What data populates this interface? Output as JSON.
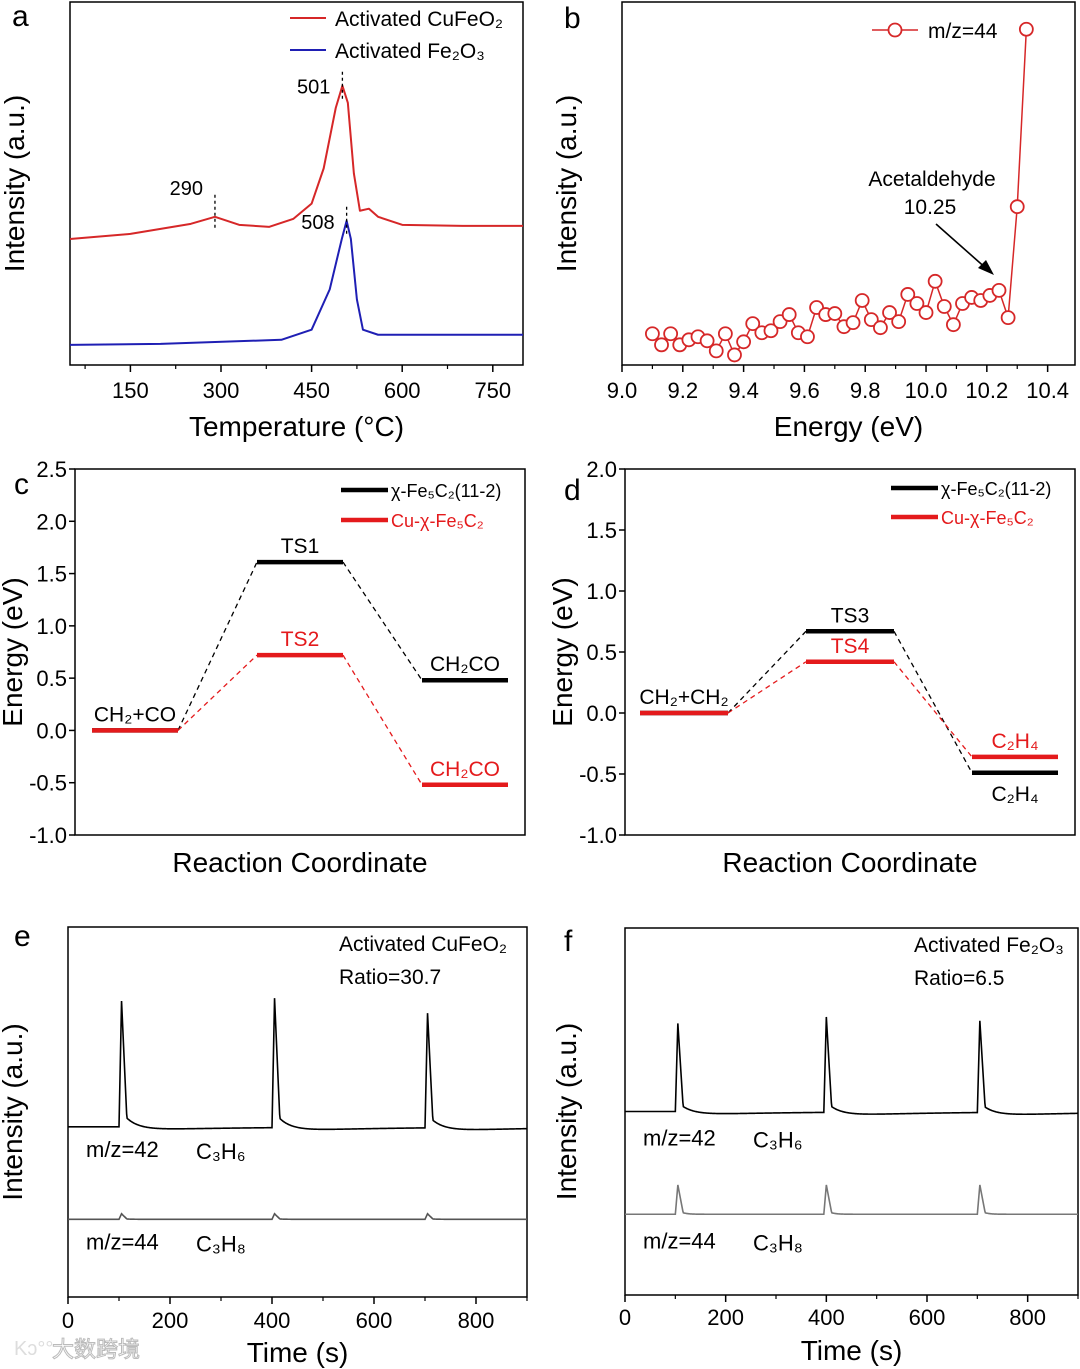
{
  "watermark": "大数跨境",
  "chart_data": [
    {
      "panel": "a",
      "type": "line",
      "xlabel": "Temperature (°C)",
      "ylabel": "Intensity (a.u.)",
      "xlim": [
        50,
        800
      ],
      "ylim": [
        0,
        360
      ],
      "xticks": [
        "150",
        "300",
        "450",
        "600",
        "750"
      ],
      "yticks": [],
      "legend": {
        "placement": "top-right"
      },
      "series": [
        {
          "name": "Activated CuFeO₂",
          "color": "#d62728",
          "x": [
            50,
            150,
            200,
            250,
            290,
            330,
            380,
            420,
            450,
            470,
            490,
            501,
            510,
            520,
            530,
            545,
            560,
            600,
            700,
            800
          ],
          "y": [
            125,
            130,
            135,
            140,
            147,
            139,
            137,
            145,
            160,
            195,
            255,
            277,
            260,
            190,
            153,
            155,
            147,
            139,
            138,
            138
          ]
        },
        {
          "name": "Activated Fe₂O₃",
          "color": "#1f1fb4",
          "x": [
            50,
            200,
            400,
            450,
            480,
            500,
            508,
            515,
            525,
            535,
            560,
            800
          ],
          "y": [
            20,
            21,
            25,
            35,
            75,
            125,
            143,
            125,
            65,
            35,
            30,
            30
          ]
        }
      ],
      "annotations": [
        {
          "text": "501",
          "x": 501,
          "y": 277
        },
        {
          "text": "290",
          "x": 290,
          "y": 147
        },
        {
          "text": "508",
          "x": 508,
          "y": 143
        }
      ]
    },
    {
      "panel": "b",
      "type": "scatter",
      "xlabel": "Energy (eV)",
      "ylabel": "Intensity (a.u.)",
      "xlim": [
        9.0,
        10.49
      ],
      "ylim": [
        0,
        360
      ],
      "xticks": [
        "9.0",
        "9.2",
        "9.4",
        "9.6",
        "9.8",
        "10.0",
        "10.2",
        "10.4"
      ],
      "yticks": [],
      "legend": {
        "placement": "top-right"
      },
      "series": [
        {
          "name": "m/z=44",
          "color": "#d62728",
          "x": [
            9.1,
            9.13,
            9.16,
            9.19,
            9.22,
            9.25,
            9.28,
            9.31,
            9.34,
            9.37,
            9.4,
            9.43,
            9.46,
            9.49,
            9.52,
            9.55,
            9.58,
            9.61,
            9.64,
            9.67,
            9.7,
            9.73,
            9.76,
            9.79,
            9.82,
            9.85,
            9.88,
            9.91,
            9.94,
            9.97,
            10.0,
            10.03,
            10.06,
            10.09,
            10.12,
            10.15,
            10.18,
            10.21,
            10.24,
            10.27,
            10.3,
            10.33
          ],
          "y": [
            31,
            20,
            31,
            20,
            25,
            28,
            24,
            14,
            31,
            10,
            23,
            41,
            32,
            34,
            43,
            50,
            32,
            28,
            57,
            50,
            51,
            38,
            42,
            64,
            45,
            37,
            52,
            43,
            70,
            61,
            52,
            83,
            58,
            40,
            61,
            67,
            64,
            69,
            74,
            47,
            157,
            333
          ]
        }
      ],
      "annotations": [
        {
          "text": "Acetaldehyde",
          "x": 10.25
        },
        {
          "text": "10.25",
          "x": 10.25
        }
      ]
    },
    {
      "panel": "c",
      "type": "energy-diagram",
      "xlabel": "Reaction Coordinate",
      "ylabel": "Energy (eV)",
      "ylim": [
        -1.0,
        2.5
      ],
      "yticks": [
        "2.5",
        "2.0",
        "1.5",
        "1.0",
        "0.5",
        "0.0",
        "-0.5",
        "-1.0"
      ],
      "legend": {
        "placement": "top-right"
      },
      "series": [
        {
          "name": "χ-Fe₅C₂(11-2)",
          "color": "#000000",
          "levels": [
            {
              "label": "CH₂+CO",
              "value": 0.0
            },
            {
              "label": "TS1",
              "value": 1.61
            },
            {
              "label": "CH₂CO",
              "value": 0.48
            }
          ]
        },
        {
          "name": "Cu-χ-Fe₅C₂",
          "color": "#e41a1c",
          "levels": [
            {
              "label": null,
              "value": 0.0
            },
            {
              "label": "TS2",
              "value": 0.72
            },
            {
              "label": "CH₂CO",
              "value": -0.52
            }
          ]
        }
      ]
    },
    {
      "panel": "d",
      "type": "energy-diagram",
      "xlabel": "Reaction Coordinate",
      "ylabel": "Energy (eV)",
      "ylim": [
        -1.0,
        2.0
      ],
      "yticks": [
        "2.0",
        "1.5",
        "1.0",
        "0.5",
        "0.0",
        "-0.5",
        "-1.0"
      ],
      "legend": {
        "placement": "top-right"
      },
      "series": [
        {
          "name": "χ-Fe₅C₂(11-2)",
          "color": "#000000",
          "levels": [
            {
              "label": "CH₂+CH₂",
              "value": 0.0
            },
            {
              "label": "TS3",
              "value": 0.67
            },
            {
              "label": "C₂H₄",
              "value": -0.49
            }
          ]
        },
        {
          "name": "Cu-χ-Fe₅C₂",
          "color": "#e41a1c",
          "levels": [
            {
              "label": null,
              "value": 0.0
            },
            {
              "label": "TS4",
              "value": 0.42
            },
            {
              "label": "C₂H₄",
              "value": -0.36
            }
          ]
        }
      ]
    },
    {
      "panel": "e",
      "type": "line",
      "xlabel": "Time (s)",
      "ylabel": "Intensity (a.u.)",
      "xlim": [
        0,
        900
      ],
      "ylim": [
        0,
        100
      ],
      "xticks": [
        "0",
        "200",
        "400",
        "600",
        "800"
      ],
      "yticks": [],
      "title_lines": [
        "Activated CuFeO₂",
        "Ratio=30.7"
      ],
      "series": [
        {
          "name": "m/z=42",
          "species": "C₃H₆",
          "color": "#000000",
          "baseline": 46,
          "peak_times": [
            105,
            405,
            705
          ],
          "peak_values": [
            80,
            81,
            77
          ]
        },
        {
          "name": "m/z=44",
          "species": "C₃H₈",
          "color": "#555555",
          "baseline": 21,
          "peak_times": [
            105,
            405,
            705
          ],
          "peak_values": [
            22.5,
            22.5,
            22.5
          ]
        }
      ]
    },
    {
      "panel": "f",
      "type": "line",
      "xlabel": "Time (s)",
      "ylabel": "Intensity (a.u.)",
      "xlim": [
        0,
        900
      ],
      "ylim": [
        0,
        100
      ],
      "xticks": [
        "0",
        "200",
        "400",
        "600",
        "800"
      ],
      "yticks": [],
      "title_lines": [
        "Activated Fe₂O₃",
        "Ratio=6.5"
      ],
      "series": [
        {
          "name": "m/z=42",
          "species": "C₃H₆",
          "color": "#000000",
          "baseline": 50,
          "peak_times": [
            105,
            400,
            705
          ],
          "peak_values": [
            74,
            76,
            75
          ]
        },
        {
          "name": "m/z=44",
          "species": "C₃H₈",
          "color": "#777777",
          "baseline": 22,
          "peak_times": [
            105,
            400,
            705
          ],
          "peak_values": [
            30,
            30,
            30
          ]
        }
      ]
    }
  ]
}
